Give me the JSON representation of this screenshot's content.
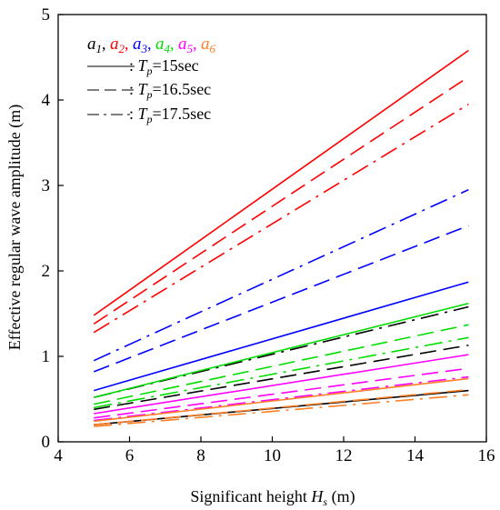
{
  "chart_data": {
    "type": "line",
    "title": "",
    "xlabel": "Significant height ",
    "xlabel_var": "H",
    "xlabel_sub": "s",
    "xlabel_unit": " (m)",
    "ylabel": "Effective regular wave amplitude (m)",
    "xlim": [
      4,
      16
    ],
    "ylim": [
      0,
      5
    ],
    "xticks": [
      4,
      6,
      8,
      10,
      12,
      14,
      16
    ],
    "yticks": [
      0,
      1,
      2,
      3,
      4,
      5
    ],
    "grid": false,
    "legend_position": "top-left",
    "legend": {
      "amplitudes": [
        {
          "sym": "a",
          "sub": "1",
          "sep": ", ",
          "color": "#000000"
        },
        {
          "sym": "a",
          "sub": "2",
          "sep": ", ",
          "color": "#ff0000"
        },
        {
          "sym": "a",
          "sub": "3",
          "sep": ", ",
          "color": "#0000ff"
        },
        {
          "sym": "a",
          "sub": "4",
          "sep": ", ",
          "color": "#00dd00"
        },
        {
          "sym": "a",
          "sub": "5",
          "sep": ", ",
          "color": "#ff00ff"
        },
        {
          "sym": "a",
          "sub": "6",
          "sep": "",
          "color": "#ff7f27"
        }
      ],
      "periods": [
        {
          "style": "solid",
          "prefix": ": ",
          "var": "T",
          "sub": "p",
          "value": "=15sec"
        },
        {
          "style": "dash",
          "prefix": ": ",
          "var": "T",
          "sub": "p",
          "value": "=16.5sec"
        },
        {
          "style": "dashdot",
          "prefix": ": ",
          "var": "T",
          "sub": "p",
          "value": "=17.5sec"
        }
      ]
    },
    "x": [
      5,
      15.5
    ],
    "series": [
      {
        "amp": "a1",
        "period": "Tp=15sec",
        "style": "solid",
        "color": "#000000",
        "values": [
          0.2,
          0.6
        ]
      },
      {
        "amp": "a1",
        "period": "Tp=16.5sec",
        "style": "dash",
        "color": "#000000",
        "values": [
          0.38,
          1.13
        ]
      },
      {
        "amp": "a1",
        "period": "Tp=17.5sec",
        "style": "dashdot",
        "color": "#000000",
        "values": [
          0.52,
          1.58
        ]
      },
      {
        "amp": "a2",
        "period": "Tp=15sec",
        "style": "solid",
        "color": "#ff0000",
        "values": [
          1.48,
          4.58
        ]
      },
      {
        "amp": "a2",
        "period": "Tp=16.5sec",
        "style": "dash",
        "color": "#ff0000",
        "values": [
          1.38,
          4.27
        ]
      },
      {
        "amp": "a2",
        "period": "Tp=17.5sec",
        "style": "dashdot",
        "color": "#ff0000",
        "values": [
          1.28,
          3.95
        ]
      },
      {
        "amp": "a3",
        "period": "Tp=15sec",
        "style": "solid",
        "color": "#0000ff",
        "values": [
          0.6,
          1.87
        ]
      },
      {
        "amp": "a3",
        "period": "Tp=16.5sec",
        "style": "dash",
        "color": "#0000ff",
        "values": [
          0.82,
          2.53
        ]
      },
      {
        "amp": "a3",
        "period": "Tp=17.5sec",
        "style": "dashdot",
        "color": "#0000ff",
        "values": [
          0.95,
          2.95
        ]
      },
      {
        "amp": "a4",
        "period": "Tp=15sec",
        "style": "solid",
        "color": "#00dd00",
        "values": [
          0.52,
          1.62
        ]
      },
      {
        "amp": "a4",
        "period": "Tp=16.5sec",
        "style": "dash",
        "color": "#00dd00",
        "values": [
          0.44,
          1.37
        ]
      },
      {
        "amp": "a4",
        "period": "Tp=17.5sec",
        "style": "dashdot",
        "color": "#00dd00",
        "values": [
          0.4,
          1.22
        ]
      },
      {
        "amp": "a5",
        "period": "Tp=15sec",
        "style": "solid",
        "color": "#ff00ff",
        "values": [
          0.33,
          1.02
        ]
      },
      {
        "amp": "a5",
        "period": "Tp=16.5sec",
        "style": "dash",
        "color": "#ff00ff",
        "values": [
          0.28,
          0.86
        ]
      },
      {
        "amp": "a5",
        "period": "Tp=17.5sec",
        "style": "dashdot",
        "color": "#ff00ff",
        "values": [
          0.25,
          0.76
        ]
      },
      {
        "amp": "a6",
        "period": "Tp=15sec",
        "style": "solid",
        "color": "#ff7f27",
        "values": [
          0.24,
          0.74
        ]
      },
      {
        "amp": "a6",
        "period": "Tp=16.5sec",
        "style": "dash",
        "color": "#ff7f27",
        "values": [
          0.2,
          0.61
        ]
      },
      {
        "amp": "a6",
        "period": "Tp=17.5sec",
        "style": "dashdot",
        "color": "#ff7f27",
        "values": [
          0.18,
          0.55
        ]
      }
    ]
  }
}
